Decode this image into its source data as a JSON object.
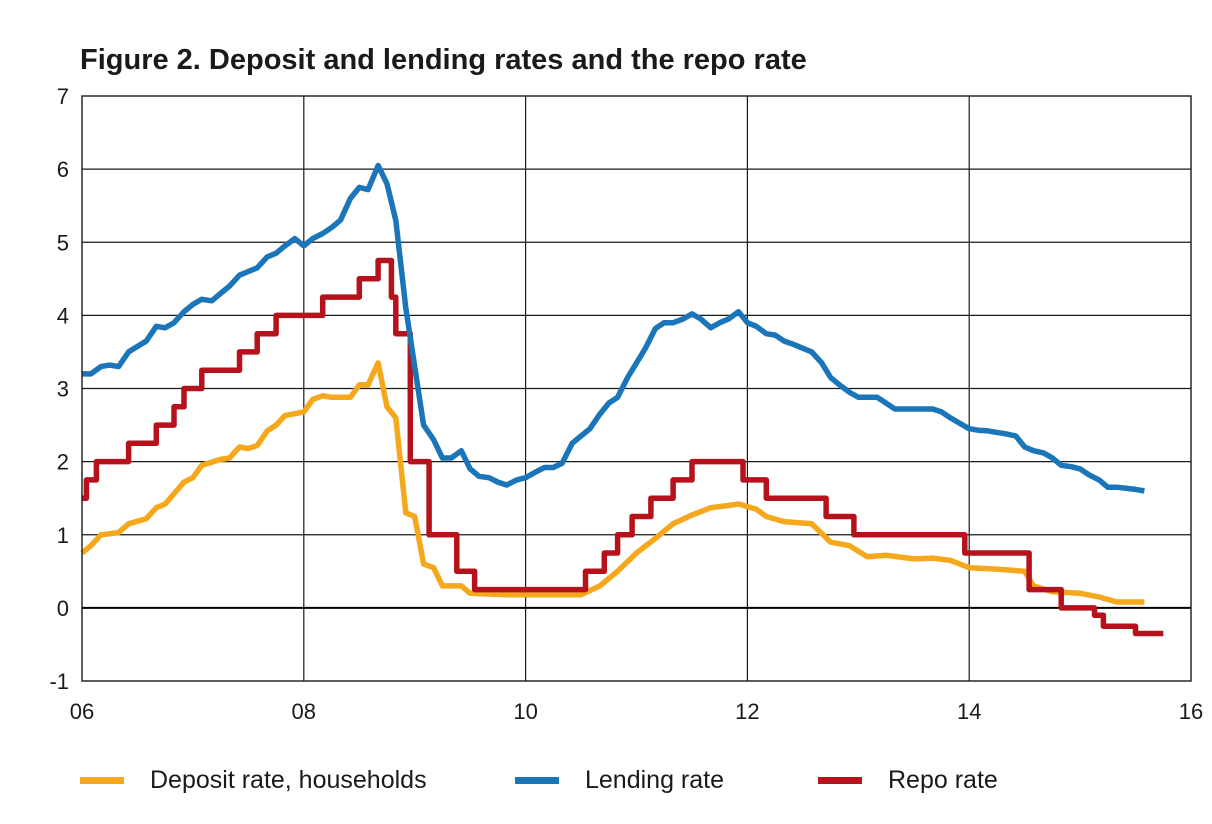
{
  "title": "Figure 2. Deposit and lending rates and the repo rate",
  "chart_data": {
    "type": "line",
    "title": "Figure 2. Deposit and lending rates and the repo rate",
    "xlabel": "",
    "ylabel": "",
    "xlim": [
      2006,
      2016
    ],
    "ylim": [
      -1,
      7
    ],
    "x_ticks": [
      2006,
      2008,
      2010,
      2012,
      2014,
      2016
    ],
    "x_tick_labels": [
      "06",
      "08",
      "10",
      "12",
      "14",
      "16"
    ],
    "y_ticks": [
      -1,
      0,
      1,
      2,
      3,
      4,
      5,
      6,
      7
    ],
    "y_tick_labels": [
      "-1",
      "0",
      "1",
      "2",
      "3",
      "4",
      "5",
      "6",
      "7"
    ],
    "grid": true,
    "legend_position": "bottom",
    "series": [
      {
        "name": "Deposit rate, households",
        "color": "#f5a81c",
        "step": false,
        "points": [
          [
            2006.0,
            0.75
          ],
          [
            2006.08,
            0.85
          ],
          [
            2006.17,
            1.0
          ],
          [
            2006.33,
            1.03
          ],
          [
            2006.42,
            1.15
          ],
          [
            2006.58,
            1.22
          ],
          [
            2006.67,
            1.37
          ],
          [
            2006.75,
            1.42
          ],
          [
            2006.92,
            1.72
          ],
          [
            2007.0,
            1.78
          ],
          [
            2007.08,
            1.95
          ],
          [
            2007.25,
            2.03
          ],
          [
            2007.33,
            2.05
          ],
          [
            2007.42,
            2.2
          ],
          [
            2007.5,
            2.18
          ],
          [
            2007.58,
            2.22
          ],
          [
            2007.67,
            2.42
          ],
          [
            2007.75,
            2.5
          ],
          [
            2007.83,
            2.63
          ],
          [
            2008.0,
            2.68
          ],
          [
            2008.08,
            2.85
          ],
          [
            2008.17,
            2.9
          ],
          [
            2008.25,
            2.88
          ],
          [
            2008.42,
            2.88
          ],
          [
            2008.5,
            3.05
          ],
          [
            2008.58,
            3.05
          ],
          [
            2008.67,
            3.35
          ],
          [
            2008.75,
            2.75
          ],
          [
            2008.83,
            2.6
          ],
          [
            2008.92,
            1.3
          ],
          [
            2009.0,
            1.25
          ],
          [
            2009.08,
            0.6
          ],
          [
            2009.17,
            0.55
          ],
          [
            2009.25,
            0.3
          ],
          [
            2009.42,
            0.3
          ],
          [
            2009.5,
            0.2
          ],
          [
            2009.83,
            0.18
          ],
          [
            2010.0,
            0.18
          ],
          [
            2010.5,
            0.18
          ],
          [
            2010.67,
            0.3
          ],
          [
            2010.83,
            0.5
          ],
          [
            2011.0,
            0.75
          ],
          [
            2011.17,
            0.95
          ],
          [
            2011.33,
            1.15
          ],
          [
            2011.5,
            1.27
          ],
          [
            2011.67,
            1.37
          ],
          [
            2011.83,
            1.4
          ],
          [
            2011.92,
            1.42
          ],
          [
            2012.08,
            1.35
          ],
          [
            2012.17,
            1.25
          ],
          [
            2012.33,
            1.18
          ],
          [
            2012.58,
            1.15
          ],
          [
            2012.75,
            0.9
          ],
          [
            2012.92,
            0.85
          ],
          [
            2013.08,
            0.7
          ],
          [
            2013.25,
            0.72
          ],
          [
            2013.5,
            0.67
          ],
          [
            2013.67,
            0.68
          ],
          [
            2013.83,
            0.65
          ],
          [
            2014.0,
            0.55
          ],
          [
            2014.25,
            0.53
          ],
          [
            2014.5,
            0.5
          ],
          [
            2014.58,
            0.3
          ],
          [
            2014.75,
            0.22
          ],
          [
            2015.0,
            0.2
          ],
          [
            2015.17,
            0.15
          ],
          [
            2015.33,
            0.08
          ],
          [
            2015.58,
            0.08
          ]
        ]
      },
      {
        "name": "Lending rate",
        "color": "#1a76b8",
        "step": false,
        "points": [
          [
            2006.0,
            3.2
          ],
          [
            2006.08,
            3.2
          ],
          [
            2006.17,
            3.3
          ],
          [
            2006.25,
            3.32
          ],
          [
            2006.33,
            3.3
          ],
          [
            2006.42,
            3.5
          ],
          [
            2006.58,
            3.65
          ],
          [
            2006.67,
            3.85
          ],
          [
            2006.75,
            3.83
          ],
          [
            2006.83,
            3.9
          ],
          [
            2006.92,
            4.05
          ],
          [
            2007.0,
            4.15
          ],
          [
            2007.08,
            4.22
          ],
          [
            2007.17,
            4.2
          ],
          [
            2007.25,
            4.3
          ],
          [
            2007.33,
            4.4
          ],
          [
            2007.42,
            4.55
          ],
          [
            2007.5,
            4.6
          ],
          [
            2007.58,
            4.65
          ],
          [
            2007.67,
            4.8
          ],
          [
            2007.75,
            4.85
          ],
          [
            2007.83,
            4.95
          ],
          [
            2007.92,
            5.05
          ],
          [
            2008.0,
            4.95
          ],
          [
            2008.08,
            5.05
          ],
          [
            2008.17,
            5.12
          ],
          [
            2008.25,
            5.2
          ],
          [
            2008.33,
            5.3
          ],
          [
            2008.42,
            5.6
          ],
          [
            2008.5,
            5.75
          ],
          [
            2008.58,
            5.72
          ],
          [
            2008.67,
            6.05
          ],
          [
            2008.75,
            5.8
          ],
          [
            2008.83,
            5.3
          ],
          [
            2008.92,
            4.1
          ],
          [
            2009.0,
            3.3
          ],
          [
            2009.08,
            2.5
          ],
          [
            2009.17,
            2.3
          ],
          [
            2009.25,
            2.05
          ],
          [
            2009.33,
            2.05
          ],
          [
            2009.42,
            2.15
          ],
          [
            2009.5,
            1.9
          ],
          [
            2009.58,
            1.8
          ],
          [
            2009.67,
            1.78
          ],
          [
            2009.75,
            1.72
          ],
          [
            2009.83,
            1.68
          ],
          [
            2009.92,
            1.75
          ],
          [
            2010.0,
            1.78
          ],
          [
            2010.08,
            1.85
          ],
          [
            2010.17,
            1.92
          ],
          [
            2010.25,
            1.92
          ],
          [
            2010.33,
            1.98
          ],
          [
            2010.42,
            2.25
          ],
          [
            2010.5,
            2.35
          ],
          [
            2010.58,
            2.45
          ],
          [
            2010.67,
            2.65
          ],
          [
            2010.75,
            2.8
          ],
          [
            2010.83,
            2.88
          ],
          [
            2010.92,
            3.15
          ],
          [
            2011.0,
            3.35
          ],
          [
            2011.08,
            3.55
          ],
          [
            2011.17,
            3.82
          ],
          [
            2011.25,
            3.9
          ],
          [
            2011.33,
            3.9
          ],
          [
            2011.42,
            3.95
          ],
          [
            2011.5,
            4.02
          ],
          [
            2011.58,
            3.95
          ],
          [
            2011.67,
            3.83
          ],
          [
            2011.75,
            3.9
          ],
          [
            2011.83,
            3.95
          ],
          [
            2011.92,
            4.05
          ],
          [
            2012.0,
            3.9
          ],
          [
            2012.08,
            3.85
          ],
          [
            2012.17,
            3.75
          ],
          [
            2012.25,
            3.73
          ],
          [
            2012.33,
            3.65
          ],
          [
            2012.42,
            3.6
          ],
          [
            2012.5,
            3.55
          ],
          [
            2012.58,
            3.5
          ],
          [
            2012.67,
            3.35
          ],
          [
            2012.75,
            3.15
          ],
          [
            2012.83,
            3.05
          ],
          [
            2012.92,
            2.95
          ],
          [
            2013.0,
            2.88
          ],
          [
            2013.08,
            2.88
          ],
          [
            2013.17,
            2.88
          ],
          [
            2013.25,
            2.8
          ],
          [
            2013.33,
            2.72
          ],
          [
            2013.42,
            2.72
          ],
          [
            2013.5,
            2.72
          ],
          [
            2013.58,
            2.72
          ],
          [
            2013.67,
            2.72
          ],
          [
            2013.75,
            2.68
          ],
          [
            2013.83,
            2.6
          ],
          [
            2013.92,
            2.52
          ],
          [
            2014.0,
            2.45
          ],
          [
            2014.08,
            2.43
          ],
          [
            2014.17,
            2.42
          ],
          [
            2014.25,
            2.4
          ],
          [
            2014.33,
            2.38
          ],
          [
            2014.42,
            2.35
          ],
          [
            2014.5,
            2.2
          ],
          [
            2014.58,
            2.15
          ],
          [
            2014.67,
            2.12
          ],
          [
            2014.75,
            2.05
          ],
          [
            2014.83,
            1.95
          ],
          [
            2014.92,
            1.93
          ],
          [
            2015.0,
            1.9
          ],
          [
            2015.08,
            1.82
          ],
          [
            2015.17,
            1.75
          ],
          [
            2015.25,
            1.65
          ],
          [
            2015.33,
            1.65
          ],
          [
            2015.5,
            1.62
          ],
          [
            2015.58,
            1.6
          ]
        ]
      },
      {
        "name": "Repo rate",
        "color": "#b5121b",
        "step": true,
        "points": [
          [
            2006.0,
            1.5
          ],
          [
            2006.04,
            1.75
          ],
          [
            2006.13,
            2.0
          ],
          [
            2006.42,
            2.25
          ],
          [
            2006.67,
            2.5
          ],
          [
            2006.83,
            2.75
          ],
          [
            2006.92,
            3.0
          ],
          [
            2007.08,
            3.25
          ],
          [
            2007.42,
            3.5
          ],
          [
            2007.58,
            3.75
          ],
          [
            2007.75,
            4.0
          ],
          [
            2008.17,
            4.25
          ],
          [
            2008.5,
            4.5
          ],
          [
            2008.67,
            4.75
          ],
          [
            2008.79,
            4.25
          ],
          [
            2008.83,
            3.75
          ],
          [
            2008.96,
            2.0
          ],
          [
            2009.13,
            1.0
          ],
          [
            2009.38,
            0.5
          ],
          [
            2009.54,
            0.25
          ],
          [
            2010.46,
            0.25
          ],
          [
            2010.54,
            0.5
          ],
          [
            2010.71,
            0.75
          ],
          [
            2010.83,
            1.0
          ],
          [
            2010.96,
            1.25
          ],
          [
            2011.13,
            1.5
          ],
          [
            2011.33,
            1.75
          ],
          [
            2011.5,
            2.0
          ],
          [
            2011.96,
            1.75
          ],
          [
            2012.17,
            1.5
          ],
          [
            2012.71,
            1.25
          ],
          [
            2012.96,
            1.0
          ],
          [
            2013.96,
            0.75
          ],
          [
            2014.54,
            0.25
          ],
          [
            2014.83,
            0.0
          ],
          [
            2015.13,
            -0.1
          ],
          [
            2015.21,
            -0.25
          ],
          [
            2015.5,
            -0.35
          ],
          [
            2015.75,
            -0.35
          ]
        ]
      }
    ]
  },
  "legend": [
    {
      "label": "Deposit rate, households",
      "color": "#f5a81c"
    },
    {
      "label": "Lending rate",
      "color": "#1a76b8"
    },
    {
      "label": "Repo rate",
      "color": "#b5121b"
    }
  ]
}
